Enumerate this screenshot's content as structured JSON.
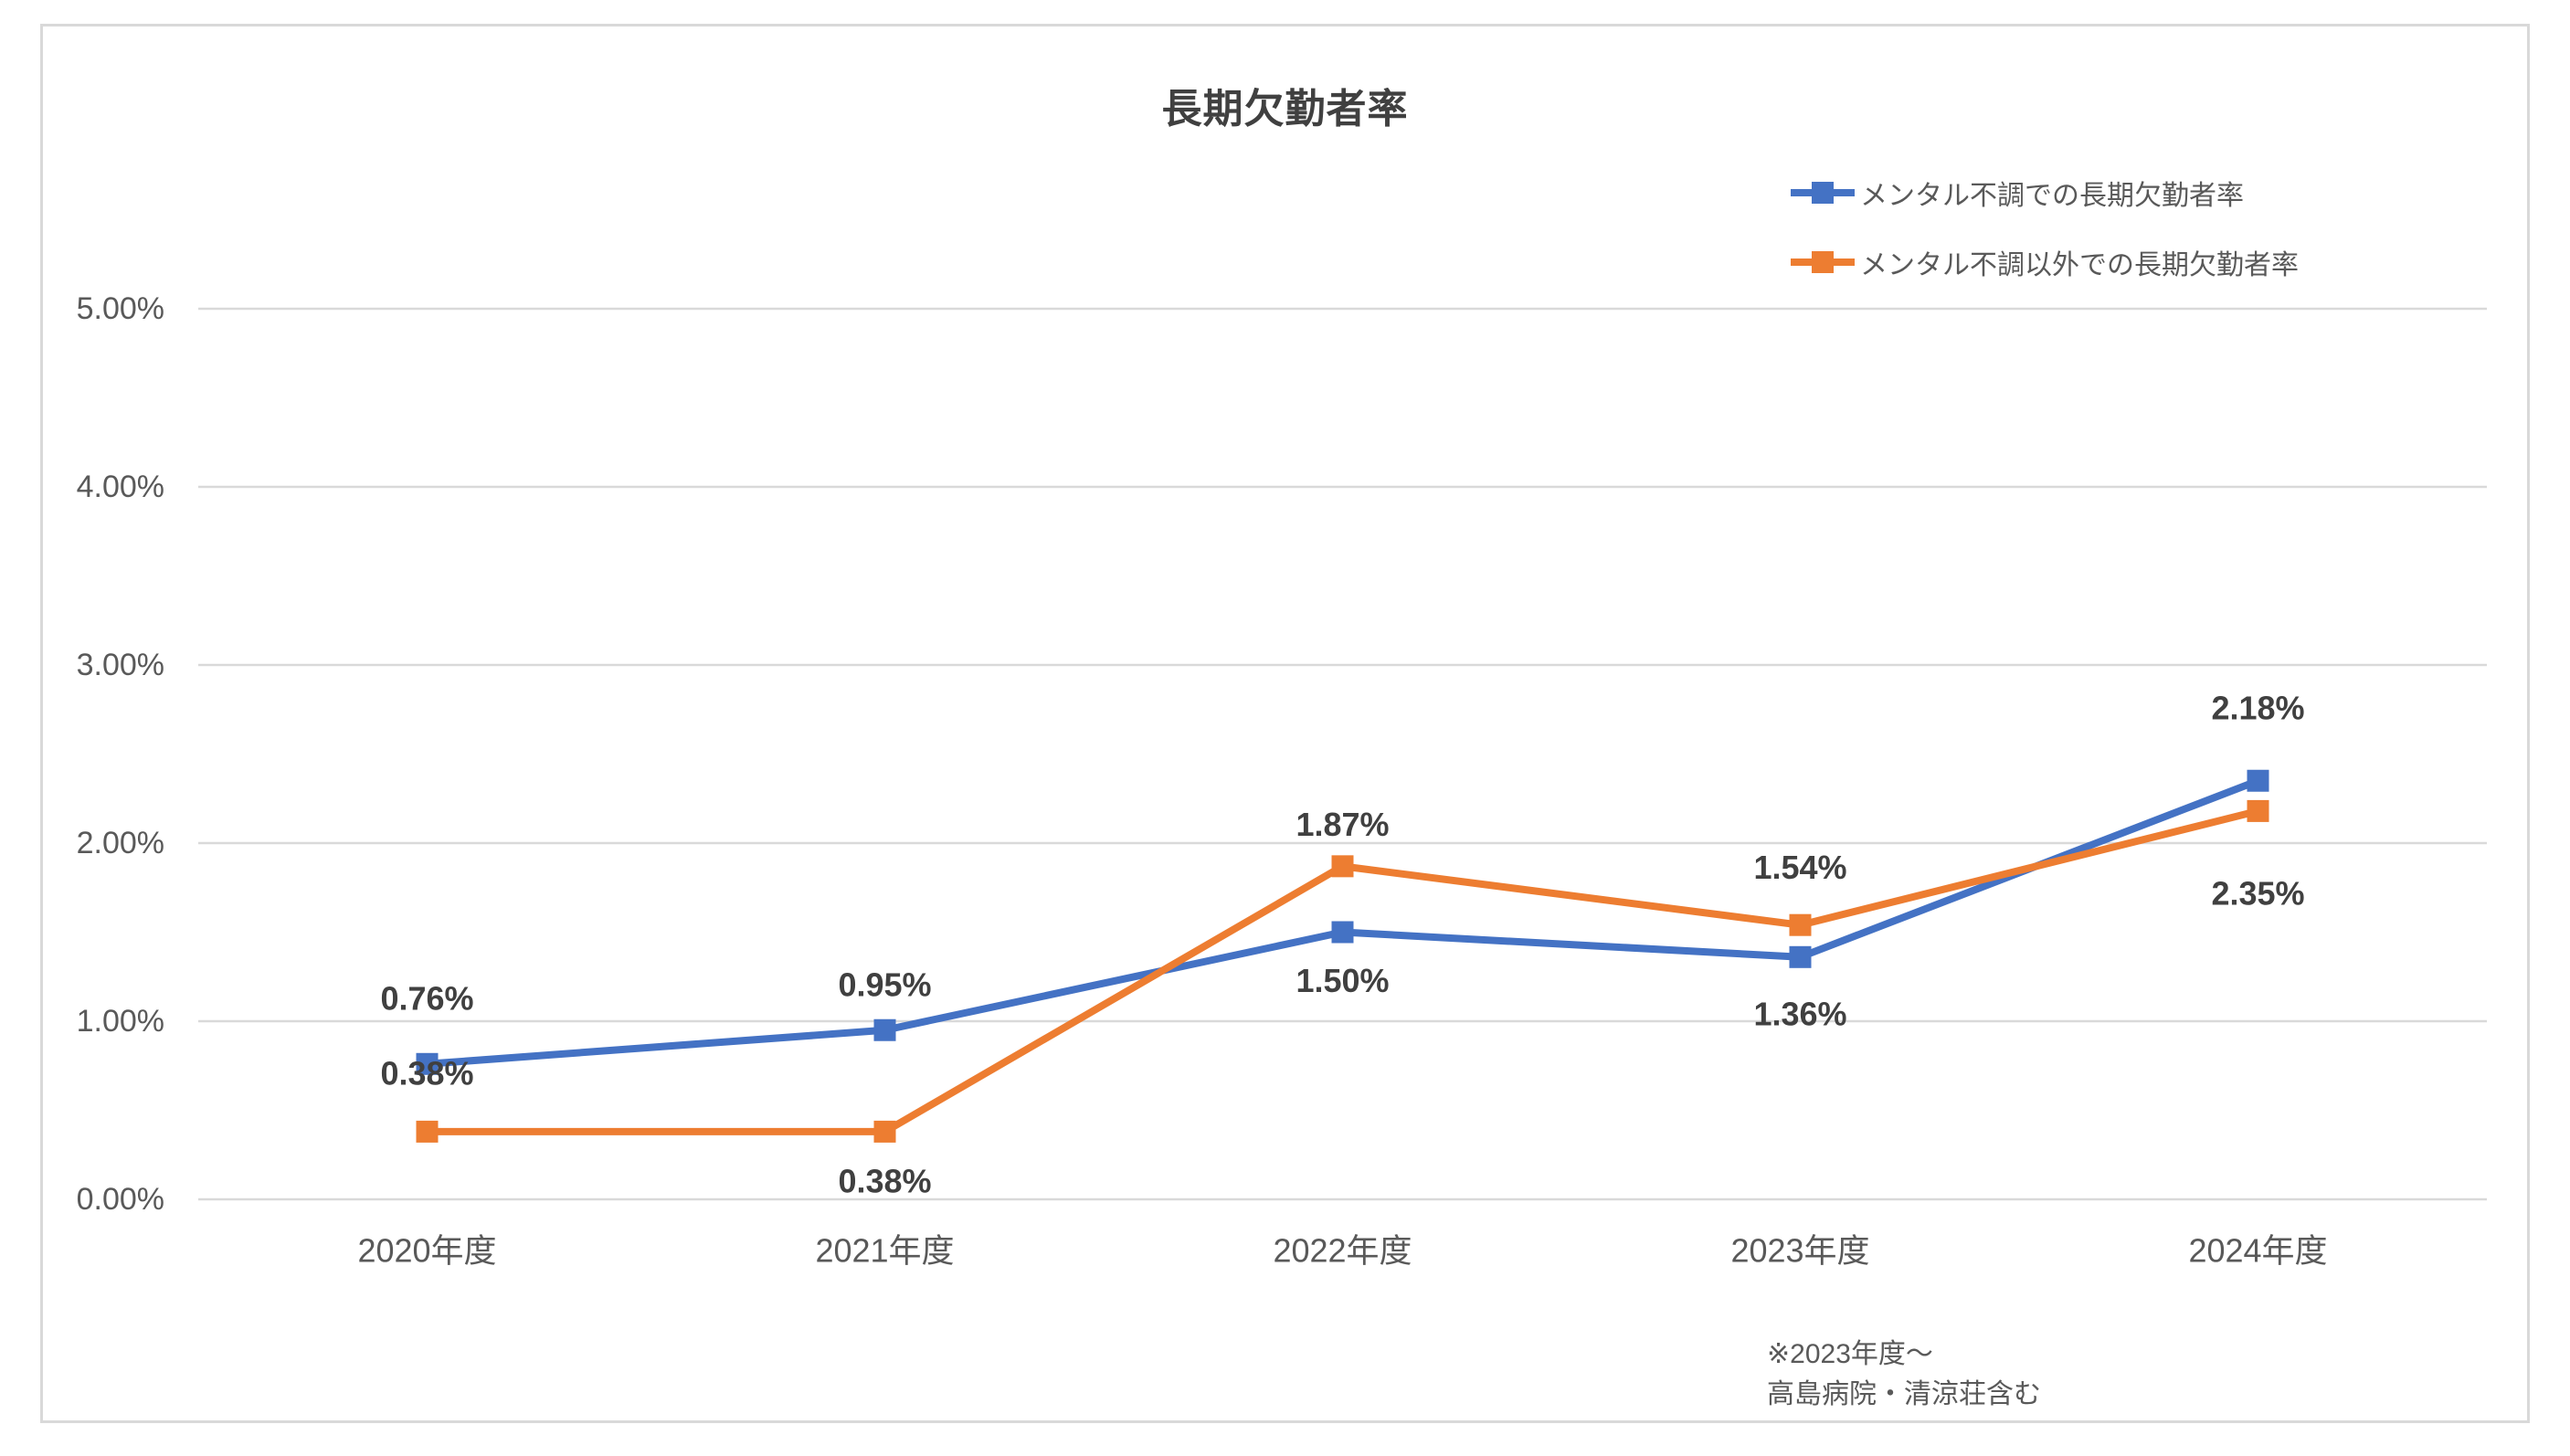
{
  "chart_data": {
    "type": "line",
    "title": "長期欠勤者率",
    "categories": [
      "2020年度",
      "2021年度",
      "2022年度",
      "2023年度",
      "2024年度"
    ],
    "series": [
      {
        "name": "メンタル不調での長期欠勤者率",
        "color": "#4472C4",
        "values": [
          0.76,
          0.95,
          1.5,
          1.36,
          2.35
        ],
        "labels": [
          "0.76%",
          "0.95%",
          "1.50%",
          "1.36%",
          "2.35%"
        ],
        "label_offsets": [
          -72,
          -50,
          53,
          62,
          123
        ]
      },
      {
        "name": "メンタル不調以外での長期欠勤者率",
        "color": "#ED7D31",
        "values": [
          0.38,
          0.38,
          1.87,
          1.54,
          2.18
        ],
        "labels": [
          "0.38%",
          "0.38%",
          "1.87%",
          "1.54%",
          "2.18%"
        ],
        "label_offsets": [
          -64,
          54,
          -46,
          -63,
          -113
        ]
      }
    ],
    "y_axis": {
      "min": 0,
      "max": 5,
      "step": 1,
      "tick_labels": [
        "0.00%",
        "1.00%",
        "2.00%",
        "3.00%",
        "4.00%",
        "5.00%"
      ]
    },
    "xlabel": "",
    "ylabel": "",
    "grid": true,
    "legend_position": "top-right",
    "note_lines": [
      "※2023年度～",
      "高島病院・清涼荘含む"
    ],
    "colors": {
      "grid": "#D9D9D9",
      "axis_text": "#595959",
      "data_label_text": "#404040",
      "title_text": "#404040"
    }
  }
}
